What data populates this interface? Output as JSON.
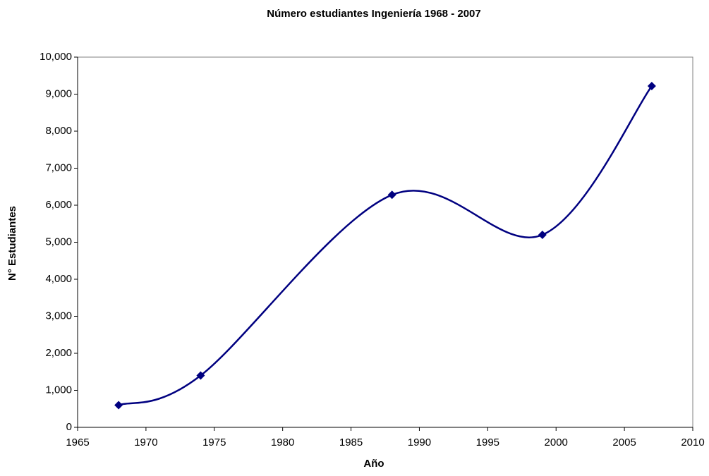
{
  "chart_data": {
    "type": "scatter",
    "smooth": true,
    "title": "Número estudiantes Ingeniería 1968 - 2007",
    "x_label": "Año",
    "y_label": "N° Estudiantes",
    "x": [
      1968,
      1974,
      1988,
      1999,
      2007
    ],
    "series": [
      {
        "color": "#000080",
        "values": [
          600,
          1400,
          6280,
          5200,
          9220
        ]
      }
    ],
    "xlim": [
      1965,
      2010
    ],
    "xticks": [
      1965,
      1970,
      1975,
      1980,
      1985,
      1990,
      1995,
      2000,
      2005,
      2010
    ],
    "ylim": [
      0,
      10000
    ],
    "yticks": [
      0,
      {
        "value": 1000,
        "label": "1,000"
      },
      {
        "value": 2000,
        "label": "2,000"
      },
      {
        "value": 3000,
        "label": "3,000"
      },
      {
        "value": 4000,
        "label": "4,000"
      },
      {
        "value": 5000,
        "label": "5,000"
      },
      {
        "value": 6000,
        "label": "6,000"
      },
      {
        "value": 7000,
        "label": "7,000"
      },
      {
        "value": 8000,
        "label": "8,000"
      },
      {
        "value": 9000,
        "label": "9,000"
      },
      {
        "value": 10000,
        "label": "10,000"
      }
    ],
    "grid": false
  }
}
